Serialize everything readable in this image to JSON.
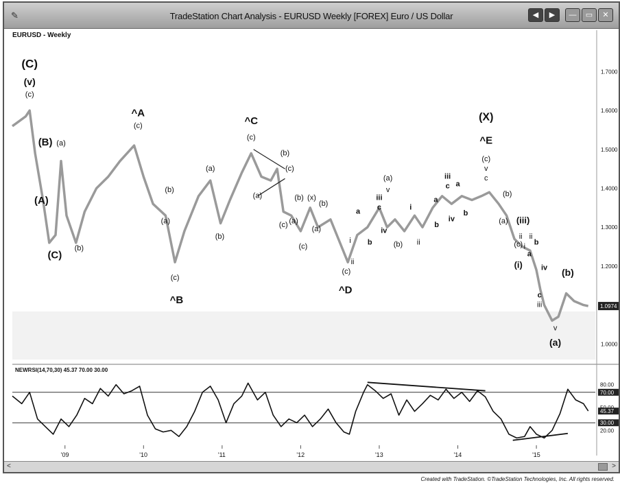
{
  "window": {
    "title": "TradeStation Chart Analysis - EURUSD Weekly [FOREX] Euro / US Dollar",
    "symbol_label": "EURUSD - Weekly",
    "app_icon": "chart-icon",
    "buttons": [
      {
        "name": "history-back-button",
        "label": "◀",
        "color": "#444"
      },
      {
        "name": "history-fwd-button",
        "label": "▶",
        "color": "#444"
      },
      {
        "name": "minimize-button",
        "label": "—",
        "color": "#9a9a9a"
      },
      {
        "name": "restore-button",
        "label": "▭",
        "color": "#9a9a9a"
      },
      {
        "name": "close-button",
        "label": "✕",
        "color": "#9a9a9a"
      }
    ]
  },
  "footer": "Created with TradeStation. ©TradeStation Technologies, Inc. All rights reserved.",
  "scrollbar": {
    "left": "<",
    "right": ">"
  },
  "chart_data": {
    "type": "line",
    "symbol": "EURUSD",
    "title": "TradeStation Chart Analysis - EURUSD Weekly [FOREX] Euro / US Dollar",
    "price_axis_ticks": [
      "1.7000",
      "1.6000",
      "1.5000",
      "1.4000",
      "1.3000",
      "1.2000",
      "1.1000",
      "1.0000"
    ],
    "y_tick_values": [
      1.7,
      1.6,
      1.5,
      1.4,
      1.3,
      1.2,
      1.1,
      1.0
    ],
    "ylim": [
      0.96,
      1.78
    ],
    "last_price_label": "1.0974",
    "last_price": 1.0974,
    "x_tick_labels": [
      "'09",
      "'10",
      "'11",
      "'12",
      "'13",
      "'14",
      "'15"
    ],
    "x_ticks": [
      2009.0,
      2010.0,
      2011.0,
      2012.0,
      2013.0,
      2014.0,
      2015.0
    ],
    "xlim": [
      2008.33,
      2015.75
    ],
    "price": [
      [
        2008.33,
        1.56
      ],
      [
        2008.4,
        1.57
      ],
      [
        2008.5,
        1.585
      ],
      [
        2008.55,
        1.6
      ],
      [
        2008.62,
        1.49
      ],
      [
        2008.72,
        1.37
      ],
      [
        2008.8,
        1.26
      ],
      [
        2008.88,
        1.28
      ],
      [
        2008.95,
        1.47
      ],
      [
        2009.02,
        1.33
      ],
      [
        2009.14,
        1.26
      ],
      [
        2009.25,
        1.34
      ],
      [
        2009.4,
        1.4
      ],
      [
        2009.55,
        1.43
      ],
      [
        2009.7,
        1.47
      ],
      [
        2009.88,
        1.51
      ],
      [
        2010.0,
        1.43
      ],
      [
        2010.12,
        1.36
      ],
      [
        2010.28,
        1.33
      ],
      [
        2010.4,
        1.21
      ],
      [
        2010.52,
        1.29
      ],
      [
        2010.7,
        1.38
      ],
      [
        2010.85,
        1.42
      ],
      [
        2010.98,
        1.31
      ],
      [
        2011.1,
        1.37
      ],
      [
        2011.25,
        1.44
      ],
      [
        2011.37,
        1.49
      ],
      [
        2011.5,
        1.43
      ],
      [
        2011.62,
        1.42
      ],
      [
        2011.7,
        1.45
      ],
      [
        2011.78,
        1.34
      ],
      [
        2011.88,
        1.33
      ],
      [
        2012.0,
        1.29
      ],
      [
        2012.12,
        1.35
      ],
      [
        2012.22,
        1.3
      ],
      [
        2012.38,
        1.32
      ],
      [
        2012.52,
        1.25
      ],
      [
        2012.6,
        1.21
      ],
      [
        2012.72,
        1.28
      ],
      [
        2012.85,
        1.3
      ],
      [
        2013.0,
        1.35
      ],
      [
        2013.1,
        1.3
      ],
      [
        2013.2,
        1.32
      ],
      [
        2013.32,
        1.29
      ],
      [
        2013.45,
        1.33
      ],
      [
        2013.55,
        1.3
      ],
      [
        2013.68,
        1.35
      ],
      [
        2013.8,
        1.38
      ],
      [
        2013.92,
        1.36
      ],
      [
        2014.05,
        1.38
      ],
      [
        2014.18,
        1.37
      ],
      [
        2014.3,
        1.38
      ],
      [
        2014.4,
        1.39
      ],
      [
        2014.52,
        1.36
      ],
      [
        2014.62,
        1.33
      ],
      [
        2014.72,
        1.27
      ],
      [
        2014.82,
        1.25
      ],
      [
        2014.92,
        1.24
      ],
      [
        2015.0,
        1.19
      ],
      [
        2015.05,
        1.14
      ],
      [
        2015.1,
        1.1
      ],
      [
        2015.2,
        1.06
      ],
      [
        2015.28,
        1.07
      ],
      [
        2015.38,
        1.13
      ],
      [
        2015.48,
        1.11
      ],
      [
        2015.6,
        1.1
      ],
      [
        2015.66,
        1.0974
      ]
    ],
    "wave_labels": [
      {
        "t": "(C)",
        "x": 2008.55,
        "y": 1.71,
        "size": 17,
        "bold": true
      },
      {
        "t": "(v)",
        "x": 2008.55,
        "y": 1.665,
        "size": 14,
        "bold": true
      },
      {
        "t": "(c)",
        "x": 2008.55,
        "y": 1.635,
        "size": 11
      },
      {
        "t": "(B)",
        "x": 2008.75,
        "y": 1.51,
        "size": 15,
        "bold": true
      },
      {
        "t": "(a)",
        "x": 2008.95,
        "y": 1.51,
        "size": 11
      },
      {
        "t": "(A)",
        "x": 2008.7,
        "y": 1.36,
        "size": 15,
        "bold": true
      },
      {
        "t": "(C)",
        "x": 2008.87,
        "y": 1.22,
        "size": 15,
        "bold": true
      },
      {
        "t": "(b)",
        "x": 2009.18,
        "y": 1.24,
        "size": 11
      },
      {
        "t": "^A",
        "x": 2009.93,
        "y": 1.585,
        "size": 15,
        "bold": true
      },
      {
        "t": "(c)",
        "x": 2009.93,
        "y": 1.555,
        "size": 11
      },
      {
        "t": "(b)",
        "x": 2010.33,
        "y": 1.39,
        "size": 11
      },
      {
        "t": "(a)",
        "x": 2010.28,
        "y": 1.31,
        "size": 11
      },
      {
        "t": "(c)",
        "x": 2010.4,
        "y": 1.165,
        "size": 11
      },
      {
        "t": "^B",
        "x": 2010.42,
        "y": 1.105,
        "size": 15,
        "bold": true
      },
      {
        "t": "(a)",
        "x": 2010.85,
        "y": 1.445,
        "size": 11
      },
      {
        "t": "(b)",
        "x": 2010.97,
        "y": 1.27,
        "size": 11
      },
      {
        "t": "^C",
        "x": 2011.37,
        "y": 1.565,
        "size": 15,
        "bold": true
      },
      {
        "t": "(c)",
        "x": 2011.37,
        "y": 1.525,
        "size": 11
      },
      {
        "t": "(b)",
        "x": 2011.8,
        "y": 1.485,
        "size": 11
      },
      {
        "t": "(c)",
        "x": 2011.86,
        "y": 1.445,
        "size": 11
      },
      {
        "t": "(a)",
        "x": 2011.45,
        "y": 1.375,
        "size": 11
      },
      {
        "t": "(b)",
        "x": 2011.98,
        "y": 1.37,
        "size": 11
      },
      {
        "t": "(x)",
        "x": 2012.14,
        "y": 1.37,
        "size": 11
      },
      {
        "t": "(b)",
        "x": 2012.29,
        "y": 1.355,
        "size": 11
      },
      {
        "t": "(c)",
        "x": 2011.78,
        "y": 1.3,
        "size": 11
      },
      {
        "t": "(a)",
        "x": 2011.91,
        "y": 1.31,
        "size": 11
      },
      {
        "t": "(a)",
        "x": 2012.2,
        "y": 1.29,
        "size": 11
      },
      {
        "t": "(c)",
        "x": 2012.03,
        "y": 1.245,
        "size": 11
      },
      {
        "t": "i",
        "x": 2012.63,
        "y": 1.26,
        "size": 11
      },
      {
        "t": "ii",
        "x": 2012.66,
        "y": 1.205,
        "size": 11
      },
      {
        "t": "(c)",
        "x": 2012.58,
        "y": 1.18,
        "size": 11
      },
      {
        "t": "^D",
        "x": 2012.57,
        "y": 1.13,
        "size": 15,
        "bold": true
      },
      {
        "t": "a",
        "x": 2012.73,
        "y": 1.335,
        "size": 11,
        "bold": true
      },
      {
        "t": "b",
        "x": 2012.88,
        "y": 1.255,
        "size": 11,
        "bold": true
      },
      {
        "t": "(a)",
        "x": 2013.11,
        "y": 1.42,
        "size": 11
      },
      {
        "t": "v",
        "x": 2013.11,
        "y": 1.39,
        "size": 11
      },
      {
        "t": "iii",
        "x": 2013.0,
        "y": 1.37,
        "size": 11,
        "bold": true
      },
      {
        "t": "c",
        "x": 2013.0,
        "y": 1.345,
        "size": 11,
        "bold": true
      },
      {
        "t": "iv",
        "x": 2013.06,
        "y": 1.285,
        "size": 11,
        "bold": true
      },
      {
        "t": "(b)",
        "x": 2013.24,
        "y": 1.25,
        "size": 11
      },
      {
        "t": "i",
        "x": 2013.4,
        "y": 1.345,
        "size": 11,
        "bold": true
      },
      {
        "t": "ii",
        "x": 2013.5,
        "y": 1.255,
        "size": 11
      },
      {
        "t": "a",
        "x": 2013.72,
        "y": 1.365,
        "size": 11,
        "bold": true
      },
      {
        "t": "b",
        "x": 2013.73,
        "y": 1.3,
        "size": 11,
        "bold": true
      },
      {
        "t": "iii",
        "x": 2013.87,
        "y": 1.425,
        "size": 11,
        "bold": true
      },
      {
        "t": "c",
        "x": 2013.87,
        "y": 1.4,
        "size": 11,
        "bold": true
      },
      {
        "t": "a",
        "x": 2014.0,
        "y": 1.405,
        "size": 11,
        "bold": true
      },
      {
        "t": "iv",
        "x": 2013.92,
        "y": 1.315,
        "size": 11,
        "bold": true
      },
      {
        "t": "b",
        "x": 2014.1,
        "y": 1.33,
        "size": 11,
        "bold": true
      },
      {
        "t": "(X)",
        "x": 2014.36,
        "y": 1.575,
        "size": 16,
        "bold": true
      },
      {
        "t": "^E",
        "x": 2014.36,
        "y": 1.515,
        "size": 15,
        "bold": true
      },
      {
        "t": "(c)",
        "x": 2014.36,
        "y": 1.47,
        "size": 11
      },
      {
        "t": "v",
        "x": 2014.36,
        "y": 1.445,
        "size": 11
      },
      {
        "t": "c",
        "x": 2014.36,
        "y": 1.42,
        "size": 11
      },
      {
        "t": "(b)",
        "x": 2014.63,
        "y": 1.38,
        "size": 11
      },
      {
        "t": "(a)",
        "x": 2014.58,
        "y": 1.31,
        "size": 11
      },
      {
        "t": "(iii)",
        "x": 2014.83,
        "y": 1.31,
        "size": 13,
        "bold": true
      },
      {
        "t": "(c)",
        "x": 2014.77,
        "y": 1.25,
        "size": 11
      },
      {
        "t": "ii",
        "x": 2014.8,
        "y": 1.27,
        "size": 11
      },
      {
        "t": "i",
        "x": 2014.85,
        "y": 1.245,
        "size": 11
      },
      {
        "t": "(i)",
        "x": 2014.77,
        "y": 1.195,
        "size": 13,
        "bold": true
      },
      {
        "t": "a",
        "x": 2014.91,
        "y": 1.225,
        "size": 11,
        "bold": true
      },
      {
        "t": "ii",
        "x": 2014.93,
        "y": 1.27,
        "size": 11
      },
      {
        "t": "b",
        "x": 2015.0,
        "y": 1.255,
        "size": 11,
        "bold": true
      },
      {
        "t": "iv",
        "x": 2015.1,
        "y": 1.19,
        "size": 11,
        "bold": true
      },
      {
        "t": "c",
        "x": 2015.04,
        "y": 1.12,
        "size": 11,
        "bold": true
      },
      {
        "t": "iii",
        "x": 2015.04,
        "y": 1.095,
        "size": 11
      },
      {
        "t": "(b)",
        "x": 2015.4,
        "y": 1.175,
        "size": 14,
        "bold": true
      },
      {
        "t": "v",
        "x": 2015.24,
        "y": 1.035,
        "size": 11
      },
      {
        "t": "(a)",
        "x": 2015.24,
        "y": 0.995,
        "size": 14,
        "bold": true
      }
    ],
    "triangle_lines": [
      [
        [
          2011.4,
          1.5
        ],
        [
          2011.8,
          1.45
        ]
      ],
      [
        [
          2011.45,
          1.38
        ],
        [
          2011.8,
          1.425
        ]
      ]
    ],
    "indicator": {
      "label": "NEWRSI(14,70,30)  45.37  70.00  30.00",
      "value": 45.37,
      "overbought": 70.0,
      "oversold": 30.0,
      "axis_ticks": [
        "80.00",
        "70.00",
        "50.00",
        "45.37",
        "30.00",
        "20.00"
      ],
      "axis_tick_values": [
        80,
        70,
        50,
        45.37,
        30,
        20
      ],
      "ylim": [
        5,
        95
      ],
      "values": [
        [
          2008.33,
          65
        ],
        [
          2008.45,
          55
        ],
        [
          2008.55,
          70
        ],
        [
          2008.65,
          35
        ],
        [
          2008.75,
          25
        ],
        [
          2008.85,
          15
        ],
        [
          2008.95,
          35
        ],
        [
          2009.05,
          25
        ],
        [
          2009.15,
          40
        ],
        [
          2009.25,
          62
        ],
        [
          2009.35,
          55
        ],
        [
          2009.45,
          75
        ],
        [
          2009.55,
          65
        ],
        [
          2009.65,
          80
        ],
        [
          2009.75,
          68
        ],
        [
          2009.85,
          72
        ],
        [
          2009.95,
          78
        ],
        [
          2010.05,
          40
        ],
        [
          2010.15,
          22
        ],
        [
          2010.25,
          18
        ],
        [
          2010.35,
          20
        ],
        [
          2010.45,
          12
        ],
        [
          2010.55,
          25
        ],
        [
          2010.65,
          45
        ],
        [
          2010.75,
          70
        ],
        [
          2010.85,
          78
        ],
        [
          2010.95,
          60
        ],
        [
          2011.05,
          30
        ],
        [
          2011.15,
          55
        ],
        [
          2011.25,
          65
        ],
        [
          2011.33,
          82
        ],
        [
          2011.45,
          60
        ],
        [
          2011.55,
          70
        ],
        [
          2011.65,
          40
        ],
        [
          2011.75,
          25
        ],
        [
          2011.85,
          35
        ],
        [
          2011.95,
          30
        ],
        [
          2012.05,
          40
        ],
        [
          2012.15,
          25
        ],
        [
          2012.25,
          35
        ],
        [
          2012.35,
          48
        ],
        [
          2012.45,
          30
        ],
        [
          2012.55,
          18
        ],
        [
          2012.62,
          15
        ],
        [
          2012.7,
          45
        ],
        [
          2012.8,
          70
        ],
        [
          2012.85,
          80
        ],
        [
          2012.95,
          72
        ],
        [
          2013.05,
          62
        ],
        [
          2013.15,
          68
        ],
        [
          2013.25,
          40
        ],
        [
          2013.35,
          60
        ],
        [
          2013.45,
          45
        ],
        [
          2013.55,
          55
        ],
        [
          2013.65,
          66
        ],
        [
          2013.75,
          60
        ],
        [
          2013.85,
          74
        ],
        [
          2013.95,
          62
        ],
        [
          2014.05,
          70
        ],
        [
          2014.15,
          58
        ],
        [
          2014.25,
          72
        ],
        [
          2014.35,
          64
        ],
        [
          2014.45,
          45
        ],
        [
          2014.55,
          35
        ],
        [
          2014.65,
          15
        ],
        [
          2014.75,
          10
        ],
        [
          2014.85,
          12
        ],
        [
          2014.92,
          25
        ],
        [
          2015.0,
          15
        ],
        [
          2015.1,
          10
        ],
        [
          2015.2,
          20
        ],
        [
          2015.3,
          42
        ],
        [
          2015.4,
          74
        ],
        [
          2015.5,
          60
        ],
        [
          2015.6,
          55
        ],
        [
          2015.66,
          45.37
        ]
      ],
      "trend_lines": [
        [
          [
            2012.85,
            83
          ],
          [
            2014.35,
            72
          ]
        ],
        [
          [
            2014.7,
            7
          ],
          [
            2015.4,
            16
          ]
        ]
      ]
    },
    "colors": {
      "price_line": "#9a9a9a",
      "rsi_line": "#111111",
      "guide_line": "#333333",
      "lower_band_bg": "#f2f2f2",
      "axis_label_box": "#222222"
    }
  }
}
